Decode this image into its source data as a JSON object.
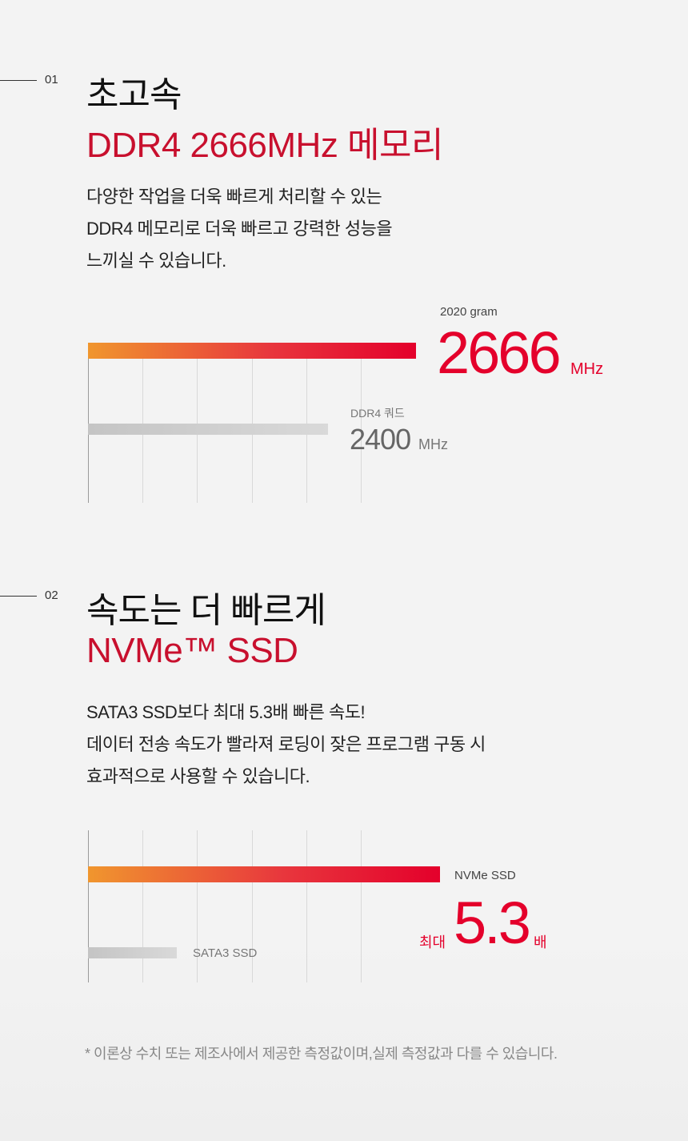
{
  "section1": {
    "number": "01",
    "title": "초고속",
    "subtitle": "DDR4 2666MHz 메모리",
    "description": [
      "다양한 작업을 더욱 빠르게 처리할 수 있는",
      "DDR4 메모리로 더욱 빠르고 강력한 성능을",
      "느끼실 수 있습니다."
    ],
    "chart": {
      "primary_label": "2020 gram",
      "primary_value": "2666",
      "primary_unit": "MHz",
      "secondary_label": "DDR4 쿼드",
      "secondary_value": "2400",
      "secondary_unit": "MHz"
    }
  },
  "section2": {
    "number": "02",
    "title": "속도는 더 빠르게",
    "subtitle": "NVMe™ SSD",
    "description": [
      "SATA3 SSD보다 최대 5.3배 빠른 속도!",
      "데이터 전송 속도가 빨라져 로딩이 잦은 프로그램 구동 시",
      "효과적으로 사용할 수 있습니다."
    ],
    "chart": {
      "primary_label": "NVMe SSD",
      "prefix": "최대",
      "primary_value": "5.3",
      "primary_unit": "배",
      "secondary_label": "SATA3 SSD"
    }
  },
  "footnote": "* 이론상 수치 또는 제조사에서 제공한 측정값이며,실제 측정값과 다를 수 있습니다.",
  "colors": {
    "accent_red": "#e4002b",
    "heading_red": "#c8102e",
    "gradient_start": "#f0962e",
    "background": "#f3f3f3"
  }
}
